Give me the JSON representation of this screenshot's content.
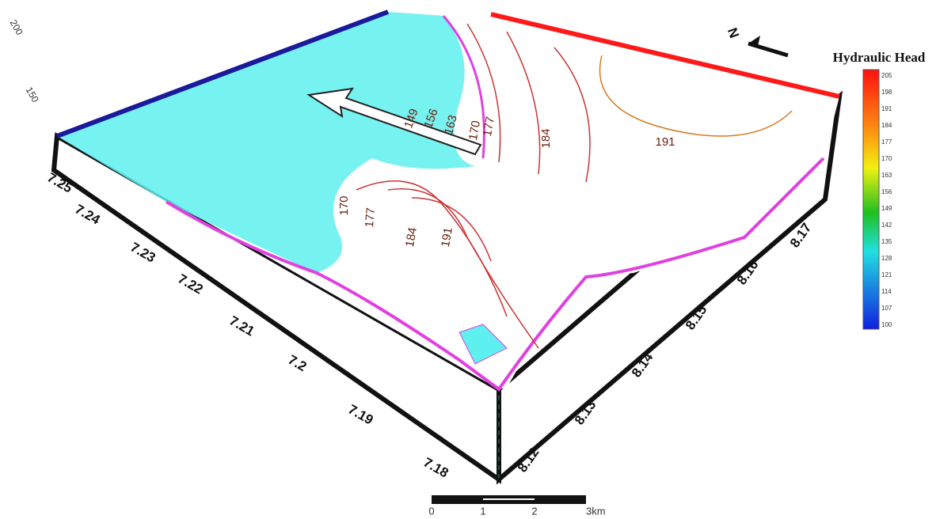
{
  "north": "N",
  "vertical_axis": [
    "200",
    "150"
  ],
  "left_axis": [
    "7.25",
    "7.24",
    "7.23",
    "7.22",
    "7.21",
    "7.2",
    "7.19",
    "7.18"
  ],
  "right_axis": [
    "8.12",
    "8.13",
    "8.14",
    "8.15",
    "8.16",
    "8.17"
  ],
  "legend": {
    "title": "Hydraulic Head",
    "ticks": [
      "205",
      "198",
      "191",
      "184",
      "177",
      "170",
      "163",
      "156",
      "149",
      "142",
      "135",
      "128",
      "121",
      "114",
      "107",
      "100"
    ]
  },
  "contour_labels": [
    "149",
    "156",
    "163",
    "170",
    "177",
    "184",
    "191",
    "170",
    "177",
    "184",
    "191"
  ],
  "scale_bar": [
    "0",
    "1",
    "2",
    "3km"
  ]
}
